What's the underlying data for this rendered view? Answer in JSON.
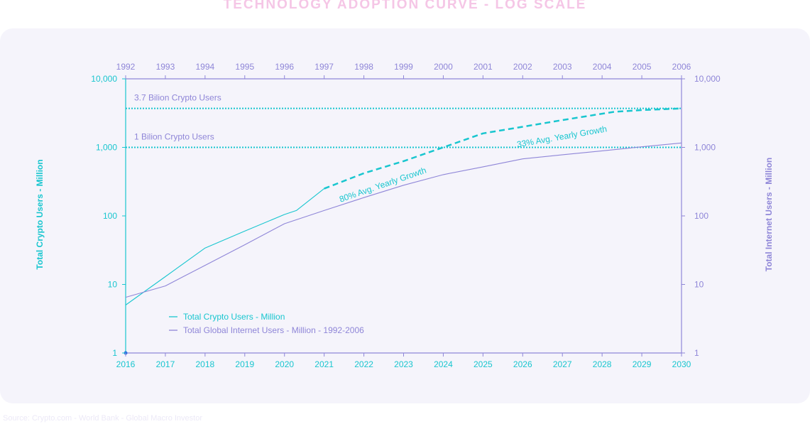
{
  "page": {
    "title": "TECHNOLOGY ADOPTION CURVE - LOG SCALE",
    "source": "Source: Crypto.com - World Bank - Global Macro Investor"
  },
  "colors": {
    "crypto": "#19c6cf",
    "internet": "#8f86d8",
    "panel": "#f5f4fb",
    "title": "#f5c6e6"
  },
  "chart_data": {
    "type": "line",
    "title": "TECHNOLOGY ADOPTION CURVE - LOG SCALE",
    "y_scale": "log",
    "ylim": [
      1,
      10000
    ],
    "ylabel_left": "Total Crypto Users - Million",
    "ylabel_right": "Total Internet Users - Million",
    "y_ticks": [
      1,
      10,
      100,
      1000,
      10000
    ],
    "y_tick_labels": [
      "1",
      "10",
      "100",
      "1,000",
      "10,000"
    ],
    "x_bottom": {
      "min": 2016,
      "max": 2030,
      "ticks": [
        "2016",
        "2017",
        "2018",
        "2019",
        "2020",
        "2021",
        "2022",
        "2023",
        "2024",
        "2025",
        "2026",
        "2027",
        "2028",
        "2029",
        "2030"
      ]
    },
    "x_top": {
      "min": 1992,
      "max": 2006,
      "ticks": [
        "1992",
        "1993",
        "1994",
        "1995",
        "1996",
        "1997",
        "1998",
        "1999",
        "2000",
        "2001",
        "2002",
        "2003",
        "2004",
        "2005",
        "2006"
      ]
    },
    "grid": false,
    "legend_position": "bottom-left",
    "series": [
      {
        "name": "Total Crypto Users - Million",
        "axis": "bottom",
        "style": "solid",
        "x": [
          2016,
          2017,
          2018,
          2019,
          2020,
          2020.3,
          2021
        ],
        "y": [
          5,
          13,
          34,
          60,
          105,
          120,
          250
        ]
      },
      {
        "axis": "bottom",
        "style": "dashed",
        "x": [
          2021,
          2022,
          2023,
          2024,
          2025,
          2026,
          2027,
          2028,
          2028.3,
          2029,
          2030
        ],
        "y": [
          250,
          420,
          630,
          1000,
          1600,
          2000,
          2500,
          3100,
          3300,
          3500,
          3700
        ]
      },
      {
        "name": "Total Global Internet Users - Million - 1992-2006",
        "axis": "top",
        "style": "solid",
        "x": [
          1992,
          1993,
          1994,
          1995,
          1996,
          1997,
          1998,
          1999,
          2000,
          2001,
          2002,
          2003,
          2004,
          2005,
          2006
        ],
        "y": [
          6.5,
          9.5,
          19,
          38,
          77,
          120,
          185,
          280,
          400,
          520,
          680,
          780,
          890,
          1020,
          1160
        ]
      }
    ],
    "reference_lines": [
      {
        "value": 3700,
        "label": "3.7 Bilion Crypto Users"
      },
      {
        "value": 1000,
        "label": "1 Bilion Crypto Users"
      }
    ],
    "annotations": [
      {
        "text": "80% Avg. Yearly Growth",
        "x": 2022.5,
        "y": 420
      },
      {
        "text": "33% Avg. Yearly Growth",
        "x": 2027,
        "y": 2100
      }
    ]
  }
}
